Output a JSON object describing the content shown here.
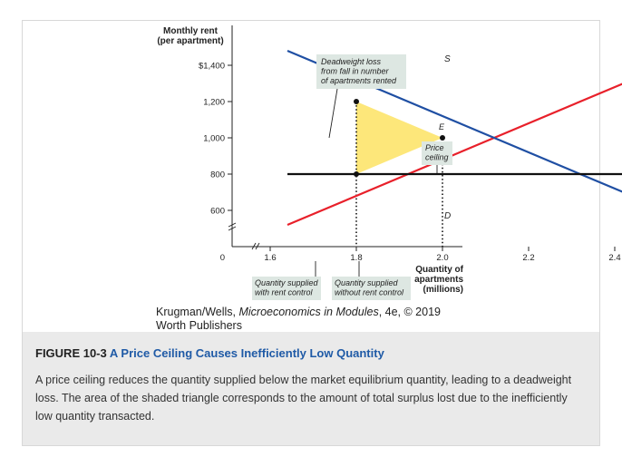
{
  "chart_data": {
    "type": "line",
    "ylabel_line1": "Monthly rent",
    "ylabel_line2": "(per apartment)",
    "xlabel_line1": "Quantity of",
    "xlabel_line2": "apartments",
    "xlabel_line3": "(millions)",
    "origin_label": "0",
    "y_ticks": [
      600,
      800,
      1000,
      1200,
      1400
    ],
    "y_tick_labels": [
      "600",
      "800",
      "1,000",
      "1,200",
      "$1,400"
    ],
    "x_ticks": [
      1.6,
      1.8,
      2.0,
      2.2,
      2.4
    ],
    "x_tick_labels": [
      "1.6",
      "1.8",
      "2.0",
      "2.2",
      "2.4"
    ],
    "ylim": [
      500,
      1500
    ],
    "xlim": [
      1.5,
      2.5
    ],
    "axis_breaks": true,
    "series": [
      {
        "name": "S",
        "color": "#e8202a",
        "x": [
          1.64,
          2.44
        ],
        "y": [
          520,
          1320
        ]
      },
      {
        "name": "D",
        "color": "#1f4fa3",
        "x": [
          1.64,
          2.44
        ],
        "y": [
          1480,
          680
        ]
      },
      {
        "name": "Price ceiling",
        "color": "#111111",
        "x": [
          1.64,
          2.52
        ],
        "y": [
          800,
          800
        ]
      }
    ],
    "equilibrium": {
      "label": "E",
      "x": 2.0,
      "y": 1000
    },
    "points": [
      {
        "x": 1.8,
        "y": 1200
      },
      {
        "x": 1.8,
        "y": 800
      },
      {
        "x": 2.0,
        "y": 1000
      }
    ],
    "deadweight_triangle": {
      "color": "#fde77a",
      "vertices": [
        [
          1.8,
          1200
        ],
        [
          1.8,
          800
        ],
        [
          2.0,
          1000
        ]
      ]
    },
    "guide_lines_x": [
      1.8,
      2.0
    ],
    "annotations": {
      "deadweight": [
        "Deadweight loss",
        "from fall in number",
        "of apartments rented"
      ],
      "price_ceiling": [
        "Price",
        "ceiling"
      ],
      "qs_rent_control": [
        "Quantity supplied",
        "with rent control"
      ],
      "qs_no_rent_control": [
        "Quantity supplied",
        "without rent control"
      ]
    }
  },
  "credit": {
    "line1_prefix": "Krugman/Wells, ",
    "line1_italic": "Microeconomics in Modules",
    "line1_suffix": ", 4e, © 2019",
    "line2": "Worth Publishers"
  },
  "caption": {
    "figure_number": "FIGURE 10-3",
    "title": "A Price Ceiling Causes Inefficiently Low Quantity",
    "body": "A price ceiling reduces the quantity supplied below the market equilibrium quantity, leading to a deadweight loss. The area of the shaded triangle corresponds to the amount of total surplus lost due to the inefficiently low quantity transacted."
  }
}
